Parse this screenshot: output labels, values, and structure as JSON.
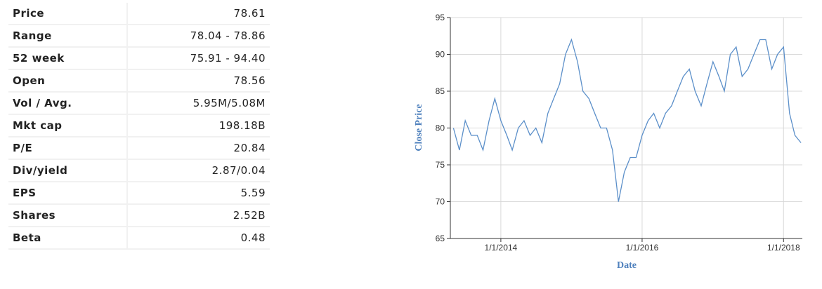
{
  "table": {
    "rows": [
      [
        "Price",
        "78.61"
      ],
      [
        "Range",
        "78.04 - 78.86"
      ],
      [
        "52 week",
        "75.91 - 94.40"
      ],
      [
        "Open",
        "78.56"
      ],
      [
        "Vol / Avg.",
        "5.95M/5.08M"
      ],
      [
        "Mkt cap",
        "198.18B"
      ],
      [
        "P/E",
        "20.84"
      ],
      [
        "Div/yield",
        "2.87/0.04"
      ],
      [
        "EPS",
        "5.59"
      ],
      [
        "Shares",
        "2.52B"
      ],
      [
        "Beta",
        "0.48"
      ]
    ]
  },
  "chart_data": {
    "type": "line",
    "ylabel": "Close Price",
    "xlabel": "Date",
    "color": "#5b8fc9",
    "grid": true,
    "x": [
      "2013-05-01",
      "2013-06-01",
      "2013-07-01",
      "2013-08-01",
      "2013-09-01",
      "2013-10-01",
      "2013-11-01",
      "2013-12-01",
      "2014-01-01",
      "2014-02-01",
      "2014-03-01",
      "2014-04-01",
      "2014-05-01",
      "2014-06-01",
      "2014-07-01",
      "2014-08-01",
      "2014-09-01",
      "2014-10-01",
      "2014-11-01",
      "2014-12-01",
      "2015-01-01",
      "2015-02-01",
      "2015-03-01",
      "2015-04-01",
      "2015-05-01",
      "2015-06-01",
      "2015-07-01",
      "2015-08-01",
      "2015-09-01",
      "2015-10-01",
      "2015-11-01",
      "2015-12-01",
      "2016-01-01",
      "2016-02-01",
      "2016-03-01",
      "2016-04-01",
      "2016-05-01",
      "2016-06-01",
      "2016-07-01",
      "2016-08-01",
      "2016-09-01",
      "2016-10-01",
      "2016-11-01",
      "2016-12-01",
      "2017-01-01",
      "2017-02-01",
      "2017-03-01",
      "2017-04-01",
      "2017-05-01",
      "2017-06-01",
      "2017-07-01",
      "2017-08-01",
      "2017-09-01",
      "2017-10-01",
      "2017-11-01",
      "2017-12-01",
      "2018-01-01",
      "2018-02-01",
      "2018-03-01",
      "2018-04-01"
    ],
    "values": [
      80,
      77,
      81,
      79,
      79,
      77,
      81,
      84,
      81,
      79,
      77,
      80,
      81,
      79,
      80,
      78,
      82,
      84,
      86,
      90,
      92,
      89,
      85,
      84,
      82,
      80,
      80,
      77,
      70,
      74,
      76,
      76,
      79,
      81,
      82,
      80,
      82,
      83,
      85,
      87,
      88,
      85,
      83,
      86,
      89,
      87,
      85,
      90,
      91,
      87,
      88,
      90,
      92,
      92,
      88,
      90,
      91,
      82,
      79,
      78
    ],
    "xlim": [
      "2013-04-15",
      "2018-04-08"
    ],
    "xticks": [
      {
        "value": "2014-01-01",
        "label": "1/1/2014"
      },
      {
        "value": "2016-01-01",
        "label": "1/1/2016"
      },
      {
        "value": "2018-01-01",
        "label": "1/1/2018"
      }
    ],
    "ylim": [
      65,
      95
    ],
    "yticks": [
      65,
      70,
      75,
      80,
      85,
      90,
      95
    ]
  }
}
